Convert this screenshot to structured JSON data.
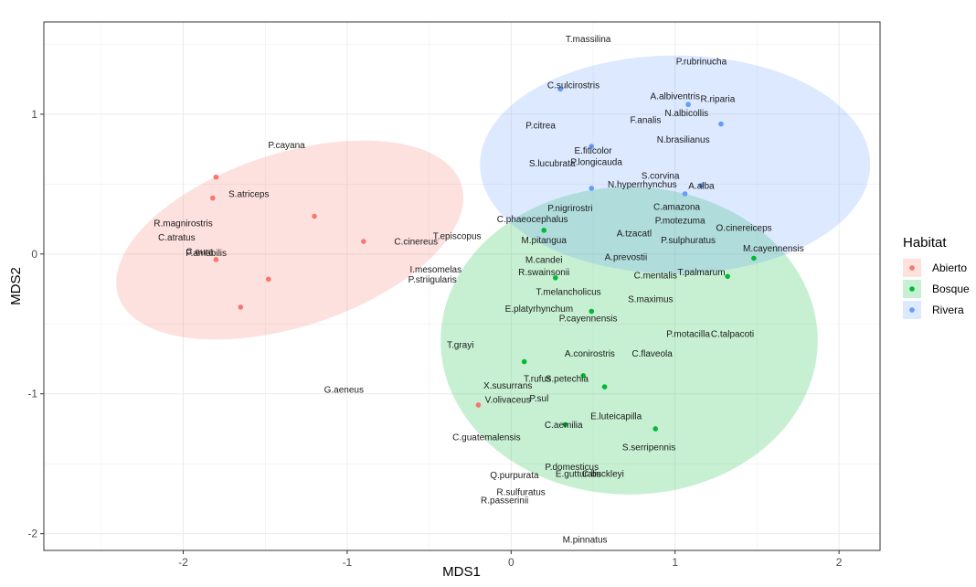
{
  "chart_data": {
    "type": "scatter",
    "title": "",
    "xlabel": "MDS1",
    "ylabel": "MDS2",
    "xlim": [
      -2.85,
      2.25
    ],
    "ylim": [
      -2.12,
      1.66
    ],
    "x_ticks": [
      -2,
      -1,
      0,
      1,
      2
    ],
    "y_ticks": [
      -2,
      -1,
      0,
      1
    ],
    "grid": true,
    "legend": {
      "title": "Habitat",
      "position": "right",
      "entries": [
        "Abierto",
        "Bosque",
        "Rivera"
      ]
    },
    "colors": {
      "Abierto": "#F8766D",
      "Bosque": "#00BA38",
      "Rivera": "#619CFF"
    },
    "ellipses": [
      {
        "group": "Abierto",
        "cx": -1.35,
        "cy": 0.1,
        "rx": 1.1,
        "ry": 0.62,
        "angle_deg": -18
      },
      {
        "group": "Bosque",
        "cx": 0.72,
        "cy": -0.62,
        "rx": 1.15,
        "ry": 1.1,
        "angle_deg": 0
      },
      {
        "group": "Rivera",
        "cx": 1.0,
        "cy": 0.64,
        "rx": 1.19,
        "ry": 0.78,
        "angle_deg": 0
      }
    ],
    "points": [
      {
        "x": -1.8,
        "y": 0.55,
        "group": "Abierto"
      },
      {
        "x": -1.82,
        "y": 0.4,
        "group": "Abierto"
      },
      {
        "x": -1.2,
        "y": 0.27,
        "group": "Abierto"
      },
      {
        "x": -0.9,
        "y": 0.09,
        "group": "Abierto"
      },
      {
        "x": -1.8,
        "y": -0.04,
        "group": "Abierto"
      },
      {
        "x": -1.48,
        "y": -0.18,
        "group": "Abierto"
      },
      {
        "x": -1.65,
        "y": -0.38,
        "group": "Abierto"
      },
      {
        "x": -0.2,
        "y": -1.08,
        "group": "Abierto"
      },
      {
        "x": 0.2,
        "y": 0.17,
        "group": "Bosque"
      },
      {
        "x": 0.27,
        "y": -0.17,
        "group": "Bosque"
      },
      {
        "x": 0.49,
        "y": -0.41,
        "group": "Bosque"
      },
      {
        "x": 0.08,
        "y": -0.77,
        "group": "Bosque"
      },
      {
        "x": 0.44,
        "y": -0.87,
        "group": "Bosque"
      },
      {
        "x": 0.57,
        "y": -0.95,
        "group": "Bosque"
      },
      {
        "x": 0.33,
        "y": -1.22,
        "group": "Bosque"
      },
      {
        "x": 0.88,
        "y": -1.25,
        "group": "Bosque"
      },
      {
        "x": 1.32,
        "y": -0.16,
        "group": "Bosque"
      },
      {
        "x": 1.48,
        "y": -0.03,
        "group": "Bosque"
      },
      {
        "x": 0.3,
        "y": 1.18,
        "group": "Rivera"
      },
      {
        "x": 0.49,
        "y": 0.77,
        "group": "Rivera"
      },
      {
        "x": 1.08,
        "y": 1.07,
        "group": "Rivera"
      },
      {
        "x": 1.28,
        "y": 0.93,
        "group": "Rivera"
      },
      {
        "x": 0.49,
        "y": 0.47,
        "group": "Rivera"
      },
      {
        "x": 1.06,
        "y": 0.43,
        "group": "Rivera"
      },
      {
        "x": 1.16,
        "y": 0.49,
        "group": "Rivera"
      }
    ],
    "labels": [
      {
        "text": "T.massilina",
        "x": 0.47,
        "y": 1.54
      },
      {
        "text": "P.rubrinucha",
        "x": 1.16,
        "y": 1.38
      },
      {
        "text": "C.sulcirostris",
        "x": 0.38,
        "y": 1.21
      },
      {
        "text": "A.albiventris",
        "x": 1.0,
        "y": 1.13
      },
      {
        "text": "R.riparia",
        "x": 1.26,
        "y": 1.11
      },
      {
        "text": "N.albicollis",
        "x": 1.07,
        "y": 1.01
      },
      {
        "text": "P.citrea",
        "x": 0.18,
        "y": 0.92
      },
      {
        "text": "F.analis",
        "x": 0.82,
        "y": 0.96
      },
      {
        "text": "N.brasilianus",
        "x": 1.05,
        "y": 0.82
      },
      {
        "text": "E.fiticolor",
        "x": 0.5,
        "y": 0.74
      },
      {
        "text": "S.lucubrata",
        "x": 0.25,
        "y": 0.65
      },
      {
        "text": "P.longicauda",
        "x": 0.52,
        "y": 0.66
      },
      {
        "text": "S.corvina",
        "x": 0.91,
        "y": 0.56
      },
      {
        "text": "N.hyperrhynchus",
        "x": 0.8,
        "y": 0.5
      },
      {
        "text": "A.alba",
        "x": 1.16,
        "y": 0.49
      },
      {
        "text": "P.cayana",
        "x": -1.37,
        "y": 0.78
      },
      {
        "text": "S.atriceps",
        "x": -1.6,
        "y": 0.43
      },
      {
        "text": "P.nigrirostri",
        "x": 0.36,
        "y": 0.33
      },
      {
        "text": "C.amazona",
        "x": 1.01,
        "y": 0.34
      },
      {
        "text": "C.phaeocephalus",
        "x": 0.13,
        "y": 0.25
      },
      {
        "text": "P.motezuma",
        "x": 1.03,
        "y": 0.24
      },
      {
        "text": "O.cinereiceps",
        "x": 1.42,
        "y": 0.19
      },
      {
        "text": "R.magnirostris",
        "x": -2.0,
        "y": 0.22
      },
      {
        "text": "C.cinereus",
        "x": -0.58,
        "y": 0.09
      },
      {
        "text": "T.episcopus",
        "x": -0.33,
        "y": 0.13
      },
      {
        "text": "A.tzacatl",
        "x": 0.75,
        "y": 0.15
      },
      {
        "text": "P.sulphuratus",
        "x": 1.08,
        "y": 0.1
      },
      {
        "text": "M.cayennensis",
        "x": 1.6,
        "y": 0.04
      },
      {
        "text": "C.atratus",
        "x": -2.04,
        "y": 0.12
      },
      {
        "text": "P.amabilis",
        "x": -1.86,
        "y": 0.01
      },
      {
        "text": "C.aura",
        "x": -1.9,
        "y": 0.02
      },
      {
        "text": "M.pitangua",
        "x": 0.2,
        "y": 0.1
      },
      {
        "text": "M.candei",
        "x": 0.2,
        "y": -0.04
      },
      {
        "text": "A.prevostii",
        "x": 0.7,
        "y": -0.02
      },
      {
        "text": "R.swainsonii",
        "x": 0.2,
        "y": -0.13
      },
      {
        "text": "C.mentalis",
        "x": 0.88,
        "y": -0.15
      },
      {
        "text": "T.palmarum",
        "x": 1.16,
        "y": -0.13
      },
      {
        "text": "I.mesomelas",
        "x": -0.46,
        "y": -0.11
      },
      {
        "text": "P.striigularis",
        "x": -0.48,
        "y": -0.18
      },
      {
        "text": "T.melancholicus",
        "x": 0.35,
        "y": -0.27
      },
      {
        "text": "S.maximus",
        "x": 0.85,
        "y": -0.32
      },
      {
        "text": "E.platyrhynchum",
        "x": 0.17,
        "y": -0.39
      },
      {
        "text": "P.cayennensis",
        "x": 0.47,
        "y": -0.46
      },
      {
        "text": "P.motacilla",
        "x": 1.08,
        "y": -0.57
      },
      {
        "text": "C.talpacoti",
        "x": 1.35,
        "y": -0.57
      },
      {
        "text": "T.grayi",
        "x": -0.31,
        "y": -0.65
      },
      {
        "text": "A.conirostris",
        "x": 0.48,
        "y": -0.71
      },
      {
        "text": "C.flaveola",
        "x": 0.86,
        "y": -0.71
      },
      {
        "text": "T.rufus",
        "x": 0.16,
        "y": -0.89
      },
      {
        "text": "S.petechia",
        "x": 0.34,
        "y": -0.89
      },
      {
        "text": "G.aeneus",
        "x": -1.02,
        "y": -0.97
      },
      {
        "text": "X.susurrans",
        "x": -0.02,
        "y": -0.94
      },
      {
        "text": "V.olivaceus",
        "x": -0.02,
        "y": -1.04
      },
      {
        "text": "P.sul",
        "x": 0.17,
        "y": -1.03
      },
      {
        "text": "E.luteicapilla",
        "x": 0.64,
        "y": -1.16
      },
      {
        "text": "C.aemilia",
        "x": 0.32,
        "y": -1.22
      },
      {
        "text": "C.guatemalensis",
        "x": -0.15,
        "y": -1.31
      },
      {
        "text": "S.serripennis",
        "x": 0.84,
        "y": -1.38
      },
      {
        "text": "P.domesticus",
        "x": 0.37,
        "y": -1.52
      },
      {
        "text": "Q.purpurata",
        "x": 0.02,
        "y": -1.58
      },
      {
        "text": "E.gutturalis",
        "x": 0.41,
        "y": -1.57
      },
      {
        "text": "C.buckleyi",
        "x": 0.56,
        "y": -1.57
      },
      {
        "text": "R.sulfuratus",
        "x": 0.06,
        "y": -1.7
      },
      {
        "text": "R.passerinii",
        "x": -0.04,
        "y": -1.76
      },
      {
        "text": "M.pinnatus",
        "x": 0.45,
        "y": -2.04
      }
    ]
  }
}
